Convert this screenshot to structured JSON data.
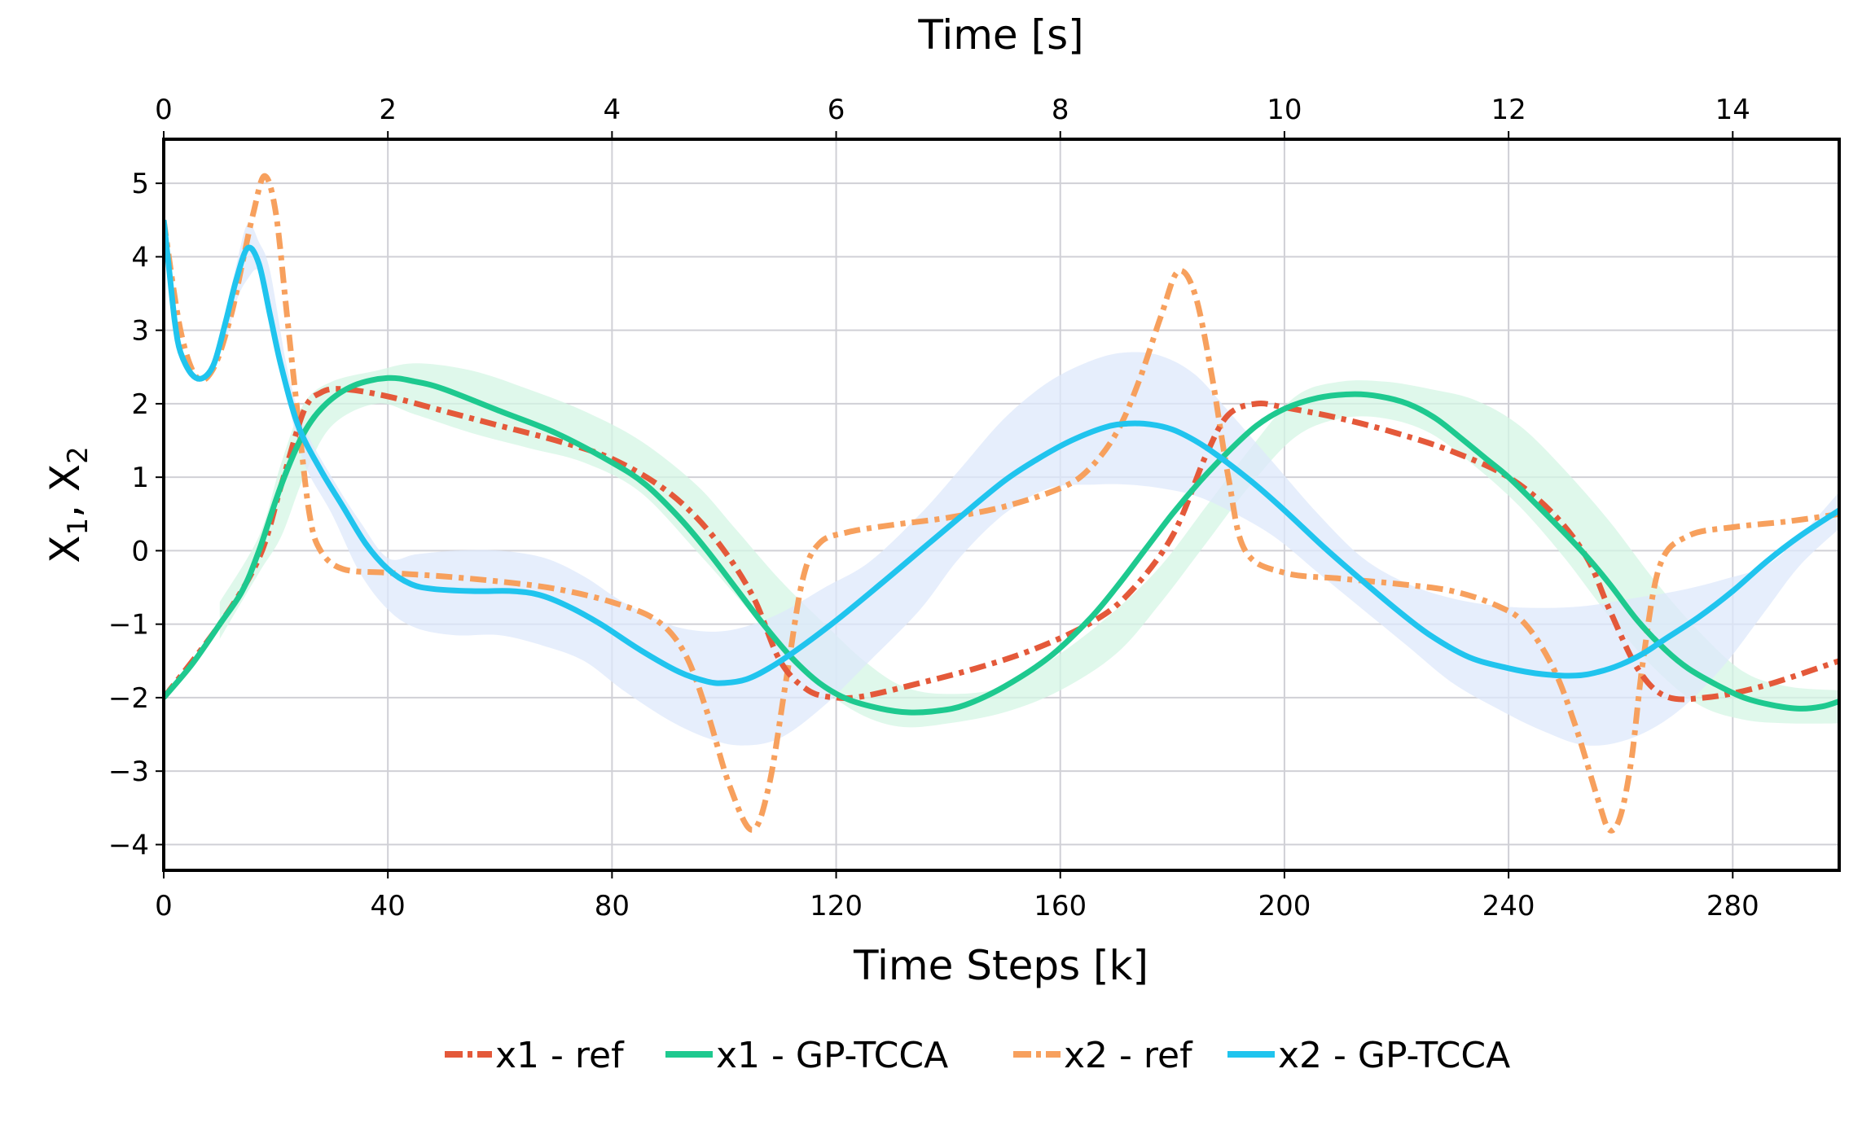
{
  "chart_data": {
    "type": "line",
    "title": "",
    "xlabel": "Time Steps [k]",
    "x2label": "Time [s]",
    "ylabel": "X1, X2",
    "ylabel_parts": {
      "base1": "X",
      "sub1": "1",
      "sep": ", ",
      "base2": "X",
      "sub2": "2"
    },
    "xlim": [
      0,
      299
    ],
    "ylim": [
      -4.35,
      5.6
    ],
    "x2lim": [
      0,
      14.95
    ],
    "xticks": [
      0,
      40,
      80,
      120,
      160,
      200,
      240,
      280
    ],
    "xtick_labels": [
      "0",
      "40",
      "80",
      "120",
      "160",
      "200",
      "240",
      "280"
    ],
    "x2ticks": [
      0,
      2,
      4,
      6,
      8,
      10,
      12,
      14
    ],
    "x2tick_labels": [
      "0",
      "2",
      "4",
      "6",
      "8",
      "10",
      "12",
      "14"
    ],
    "yticks": [
      5,
      4,
      3,
      2,
      1,
      0,
      -1,
      -2,
      -3,
      -4
    ],
    "ytick_labels": [
      "5",
      "4",
      "3",
      "2",
      "1",
      "0",
      "−1",
      "−2",
      "−3",
      "−4"
    ],
    "grid": true,
    "legend_position": "bottom-center",
    "series": [
      {
        "name": "x1 - ref",
        "style": "dashdot",
        "color": "#e4593a",
        "x": [
          0,
          10,
          17,
          21,
          25,
          28,
          32,
          40,
          50,
          60,
          70,
          80,
          90,
          98,
          105,
          110,
          115,
          120,
          125,
          135,
          145,
          155,
          165,
          172,
          180,
          186,
          190,
          195,
          200,
          210,
          220,
          230,
          240,
          248,
          254,
          258,
          263,
          268,
          275,
          285,
          299
        ],
        "y": [
          -2.0,
          -1.0,
          -0.1,
          0.9,
          1.9,
          2.15,
          2.2,
          2.1,
          1.9,
          1.7,
          1.5,
          1.25,
          0.8,
          0.2,
          -0.6,
          -1.5,
          -1.9,
          -2.0,
          -1.98,
          -1.8,
          -1.6,
          -1.35,
          -1.0,
          -0.6,
          0.2,
          1.3,
          1.85,
          2.0,
          1.95,
          1.8,
          1.6,
          1.35,
          1.0,
          0.5,
          -0.1,
          -0.8,
          -1.6,
          -1.98,
          -2.0,
          -1.85,
          -1.5
        ]
      },
      {
        "name": "x1 - GP-TCCA",
        "style": "solid",
        "color": "#1ec98f",
        "x": [
          0,
          5,
          10,
          14,
          17,
          21,
          25,
          29,
          34,
          40,
          45,
          50,
          60,
          70,
          80,
          86,
          92,
          97,
          102,
          107,
          112,
          117,
          122,
          128,
          133,
          138,
          143,
          150,
          158,
          165,
          170,
          175,
          180,
          185,
          190,
          195,
          200,
          206,
          212,
          217,
          222,
          227,
          232,
          236,
          240,
          246,
          253,
          258,
          263,
          268,
          272,
          277,
          282,
          287,
          292,
          296,
          299
        ],
        "y": [
          -2.0,
          -1.55,
          -1.0,
          -0.55,
          0.0,
          0.9,
          1.6,
          2.0,
          2.25,
          2.35,
          2.3,
          2.2,
          1.9,
          1.6,
          1.2,
          0.9,
          0.45,
          0.0,
          -0.5,
          -1.0,
          -1.45,
          -1.8,
          -2.02,
          -2.15,
          -2.2,
          -2.18,
          -2.1,
          -1.85,
          -1.45,
          -0.95,
          -0.5,
          0.0,
          0.5,
          0.95,
          1.35,
          1.7,
          1.93,
          2.08,
          2.13,
          2.1,
          2.0,
          1.8,
          1.5,
          1.25,
          1.0,
          0.55,
          0.0,
          -0.45,
          -0.95,
          -1.35,
          -1.6,
          -1.82,
          -2.0,
          -2.1,
          -2.15,
          -2.12,
          -2.05
        ]
      },
      {
        "name": "x2 - ref",
        "style": "dashdot",
        "color": "#f7a05d",
        "x": [
          0,
          3,
          6,
          9,
          12,
          14,
          16,
          18,
          20,
          22,
          24,
          26,
          28,
          32,
          40,
          50,
          60,
          70,
          80,
          88,
          93,
          97,
          101,
          105,
          108,
          111,
          114,
          117,
          122,
          130,
          140,
          150,
          160,
          165,
          170,
          174,
          178,
          181,
          184,
          187,
          190,
          193,
          200,
          210,
          220,
          230,
          238,
          243,
          248,
          252,
          256,
          258,
          260,
          262,
          264,
          267,
          272,
          280,
          290,
          299
        ],
        "y": [
          4.5,
          3.0,
          2.35,
          2.5,
          3.2,
          3.9,
          4.6,
          5.1,
          4.6,
          3.2,
          1.8,
          0.5,
          0.0,
          -0.25,
          -0.3,
          -0.35,
          -0.42,
          -0.52,
          -0.7,
          -0.95,
          -1.4,
          -2.2,
          -3.2,
          -3.8,
          -3.2,
          -1.8,
          -0.4,
          0.1,
          0.25,
          0.35,
          0.45,
          0.6,
          0.85,
          1.1,
          1.6,
          2.3,
          3.2,
          3.8,
          3.5,
          2.4,
          1.0,
          0.0,
          -0.3,
          -0.38,
          -0.45,
          -0.55,
          -0.75,
          -1.0,
          -1.6,
          -2.4,
          -3.4,
          -3.8,
          -3.6,
          -2.8,
          -1.5,
          -0.2,
          0.2,
          0.32,
          0.4,
          0.5
        ]
      },
      {
        "name": "x2 - GP-TCCA",
        "style": "solid",
        "color": "#20c4ee",
        "x": [
          0,
          1,
          2,
          3,
          5,
          7,
          9,
          11,
          13,
          15,
          17,
          19,
          21,
          24,
          28,
          32,
          36,
          40,
          44,
          48,
          55,
          62,
          67,
          72,
          78,
          85,
          92,
          97,
          100,
          104,
          108,
          113,
          120,
          128,
          135,
          142,
          150,
          156,
          162,
          168,
          172,
          176,
          180,
          184,
          188,
          194,
          200,
          207,
          213,
          220,
          226,
          233,
          240,
          246,
          252,
          256,
          260,
          264,
          268,
          274,
          280,
          286,
          292,
          299
        ],
        "y": [
          4.5,
          3.8,
          3.1,
          2.7,
          2.4,
          2.35,
          2.55,
          3.1,
          3.7,
          4.12,
          3.9,
          3.2,
          2.5,
          1.7,
          1.1,
          0.6,
          0.1,
          -0.25,
          -0.45,
          -0.52,
          -0.55,
          -0.55,
          -0.6,
          -0.75,
          -1.0,
          -1.35,
          -1.65,
          -1.78,
          -1.8,
          -1.75,
          -1.6,
          -1.35,
          -0.95,
          -0.45,
          0.0,
          0.45,
          0.95,
          1.25,
          1.5,
          1.68,
          1.73,
          1.72,
          1.65,
          1.5,
          1.3,
          0.95,
          0.55,
          0.05,
          -0.35,
          -0.8,
          -1.15,
          -1.45,
          -1.6,
          -1.68,
          -1.7,
          -1.65,
          -1.55,
          -1.4,
          -1.2,
          -0.9,
          -0.55,
          -0.15,
          0.2,
          0.55
        ]
      }
    ],
    "confidence_bands": [
      {
        "name": "x1 - GP-TCCA band",
        "color": "#d4f5e4",
        "x": [
          10,
          17,
          21,
          25,
          30,
          38,
          45,
          55,
          65,
          75,
          85,
          95,
          102,
          110,
          118,
          125,
          132,
          140,
          150,
          160,
          170,
          178,
          186,
          194,
          202,
          210,
          218,
          226,
          234,
          242,
          250,
          258,
          266,
          274,
          282,
          290,
          299
        ],
        "upper": [
          -0.7,
          0.2,
          1.2,
          2.0,
          2.3,
          2.45,
          2.55,
          2.45,
          2.2,
          1.9,
          1.5,
          0.9,
          0.3,
          -0.4,
          -1.0,
          -1.5,
          -1.85,
          -1.95,
          -1.85,
          -1.4,
          -0.8,
          -0.2,
          0.6,
          1.4,
          2.1,
          2.3,
          2.3,
          2.2,
          2.05,
          1.7,
          1.1,
          0.4,
          -0.4,
          -1.1,
          -1.65,
          -1.85,
          -1.9
        ],
        "lower": [
          -1.2,
          -0.3,
          0.2,
          1.0,
          1.7,
          2.0,
          1.85,
          1.6,
          1.4,
          1.2,
          0.8,
          0.0,
          -0.6,
          -1.3,
          -1.9,
          -2.25,
          -2.4,
          -2.35,
          -2.2,
          -1.9,
          -1.4,
          -0.7,
          0.1,
          0.9,
          1.55,
          1.8,
          1.8,
          1.6,
          1.15,
          0.6,
          -0.1,
          -0.9,
          -1.6,
          -2.1,
          -2.3,
          -2.35,
          -2.35
        ]
      },
      {
        "name": "x2 - GP-TCCA band",
        "color": "#dde8fb",
        "x": [
          11,
          13,
          15,
          17,
          19,
          22,
          25,
          30,
          35,
          40,
          45,
          52,
          60,
          68,
          75,
          82,
          90,
          97,
          103,
          110,
          118,
          126,
          135,
          142,
          150,
          158,
          166,
          172,
          178,
          184,
          190,
          198,
          206,
          214,
          222,
          230,
          238,
          246,
          254,
          262,
          270,
          278,
          286,
          292,
          299
        ],
        "upper": [
          3.2,
          3.9,
          4.45,
          4.2,
          3.8,
          2.5,
          1.7,
          1.0,
          0.4,
          -0.1,
          -0.05,
          0.0,
          0.0,
          -0.1,
          -0.35,
          -0.7,
          -1.0,
          -1.1,
          -1.05,
          -0.85,
          -0.5,
          -0.15,
          0.5,
          1.1,
          1.8,
          2.3,
          2.6,
          2.7,
          2.65,
          2.4,
          1.9,
          1.2,
          0.5,
          -0.1,
          -0.45,
          -0.65,
          -0.75,
          -0.78,
          -0.75,
          -0.65,
          -0.55,
          -0.4,
          -0.2,
          0.2,
          0.8
        ],
        "lower": [
          2.8,
          3.4,
          3.7,
          3.8,
          3.2,
          2.1,
          1.2,
          0.5,
          -0.3,
          -0.8,
          -1.05,
          -1.15,
          -1.15,
          -1.3,
          -1.5,
          -1.9,
          -2.3,
          -2.55,
          -2.65,
          -2.55,
          -2.1,
          -1.5,
          -0.8,
          -0.1,
          0.5,
          0.85,
          0.9,
          0.9,
          0.85,
          0.75,
          0.55,
          0.2,
          -0.3,
          -0.8,
          -1.3,
          -1.8,
          -2.15,
          -2.45,
          -2.65,
          -2.55,
          -2.2,
          -1.6,
          -0.8,
          -0.2,
          0.3
        ]
      }
    ]
  }
}
